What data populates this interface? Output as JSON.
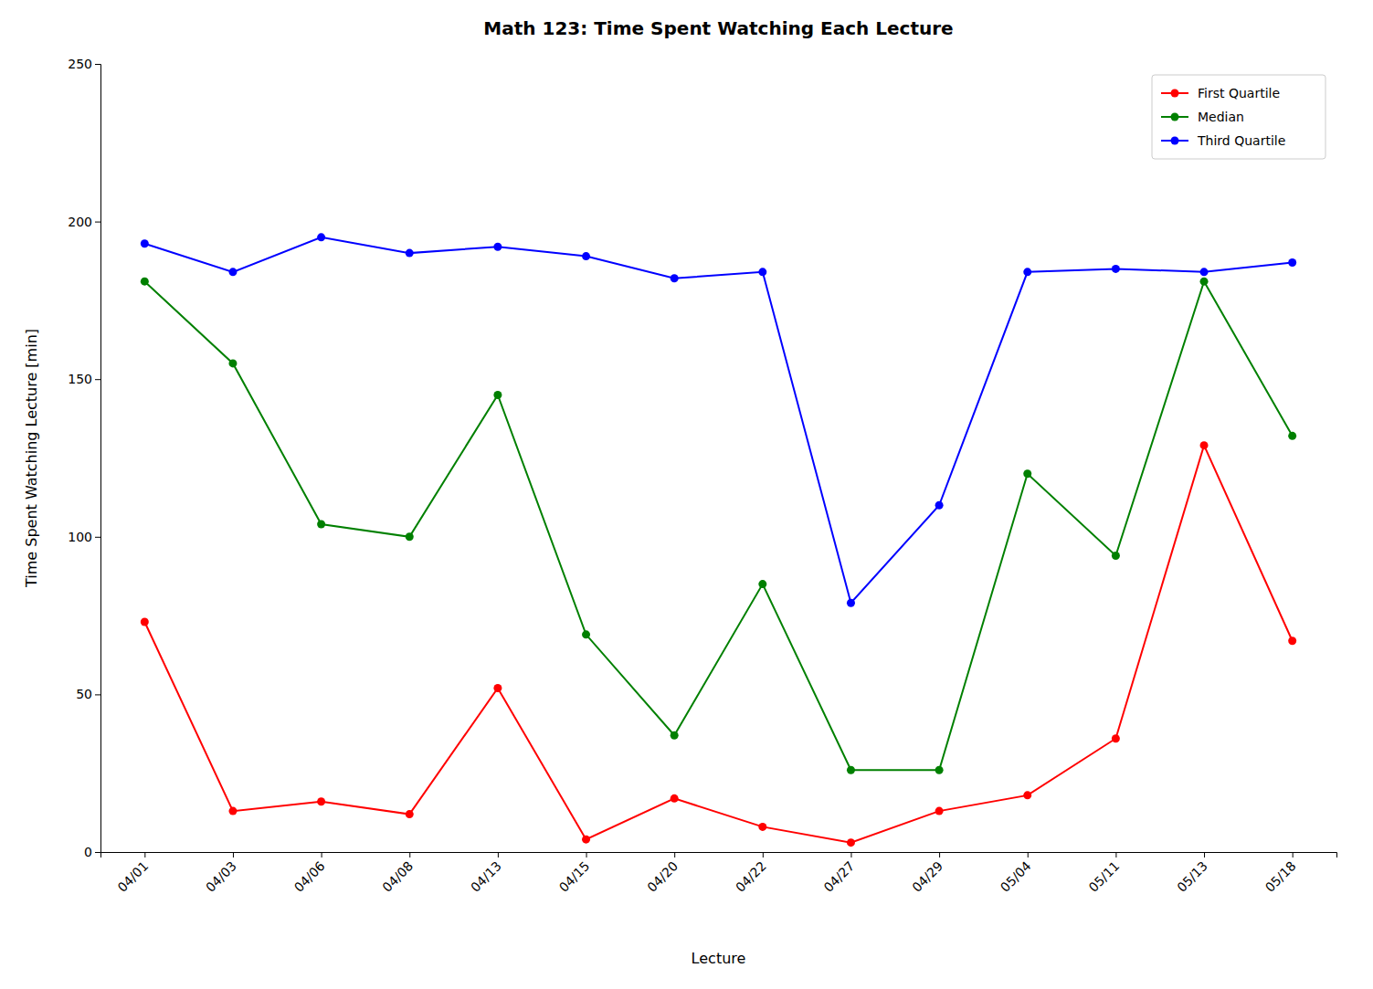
{
  "chart_data": {
    "type": "line",
    "title": "Math 123: Time Spent Watching Each Lecture",
    "xlabel": "Lecture",
    "ylabel": "Time Spent Watching Lecture [min]",
    "categories": [
      "04/01",
      "04/03",
      "04/06",
      "04/08",
      "04/13",
      "04/15",
      "04/20",
      "04/22",
      "04/27",
      "04/29",
      "05/04",
      "05/11",
      "05/13",
      "05/18"
    ],
    "series": [
      {
        "name": "First Quartile",
        "color": "#ff0000",
        "values": [
          73,
          13,
          16,
          12,
          52,
          4,
          17,
          8,
          3,
          13,
          18,
          36,
          129,
          67
        ]
      },
      {
        "name": "Median",
        "color": "#008000",
        "values": [
          181,
          155,
          104,
          100,
          145,
          69,
          37,
          85,
          26,
          26,
          120,
          94,
          181,
          132
        ]
      },
      {
        "name": "Third Quartile",
        "color": "#0000ff",
        "values": [
          193,
          184,
          195,
          190,
          192,
          189,
          182,
          184,
          79,
          110,
          184,
          185,
          184,
          187
        ]
      }
    ],
    "marker": "circle",
    "ylim": [
      0,
      250
    ],
    "yticks": [
      0,
      50,
      100,
      150,
      200,
      250
    ],
    "grid": false,
    "legend": "upper right"
  }
}
